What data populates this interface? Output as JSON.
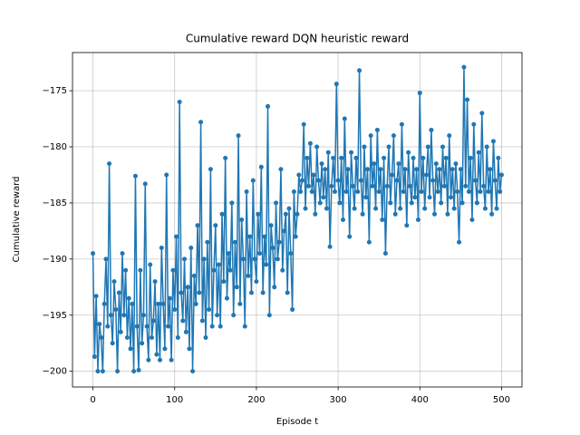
{
  "chart_data": {
    "type": "line",
    "title": "Cumulative reward DQN heuristic reward",
    "xlabel": "Episode t",
    "ylabel": "Cumulative reward",
    "color": "#1f77b4",
    "grid": true,
    "marker": "circle",
    "xlim": [
      -25,
      525
    ],
    "ylim": [
      -201.4,
      -171.6
    ],
    "xticks": [
      0,
      100,
      200,
      300,
      400,
      500
    ],
    "yticks": [
      {
        "value": -200,
        "label": "−200"
      },
      {
        "value": -195,
        "label": "−195"
      },
      {
        "value": -190,
        "label": "−190"
      },
      {
        "value": -185,
        "label": "−185"
      },
      {
        "value": -180,
        "label": "−180"
      },
      {
        "value": -175,
        "label": "−175"
      }
    ],
    "x": [
      0,
      2,
      4,
      6,
      8,
      10,
      12,
      14,
      16,
      18,
      20,
      22,
      24,
      26,
      28,
      30,
      32,
      34,
      36,
      38,
      40,
      42,
      44,
      46,
      48,
      50,
      52,
      54,
      56,
      58,
      60,
      62,
      64,
      66,
      68,
      70,
      72,
      74,
      76,
      78,
      80,
      82,
      84,
      86,
      88,
      90,
      92,
      94,
      96,
      98,
      100,
      102,
      104,
      106,
      108,
      110,
      112,
      114,
      116,
      118,
      120,
      122,
      124,
      126,
      128,
      130,
      132,
      134,
      136,
      138,
      140,
      142,
      144,
      146,
      148,
      150,
      152,
      154,
      156,
      158,
      160,
      162,
      164,
      166,
      168,
      170,
      172,
      174,
      176,
      178,
      180,
      182,
      184,
      186,
      188,
      190,
      192,
      194,
      196,
      198,
      200,
      202,
      204,
      206,
      208,
      210,
      212,
      214,
      216,
      218,
      220,
      222,
      224,
      226,
      228,
      230,
      232,
      234,
      236,
      238,
      240,
      242,
      244,
      246,
      248,
      250,
      252,
      254,
      256,
      258,
      260,
      262,
      264,
      266,
      268,
      270,
      272,
      274,
      276,
      278,
      280,
      282,
      284,
      286,
      288,
      290,
      292,
      294,
      296,
      298,
      300,
      302,
      304,
      306,
      308,
      310,
      312,
      314,
      316,
      318,
      320,
      322,
      324,
      326,
      328,
      330,
      332,
      334,
      336,
      338,
      340,
      342,
      344,
      346,
      348,
      350,
      352,
      354,
      356,
      358,
      360,
      362,
      364,
      366,
      368,
      370,
      372,
      374,
      376,
      378,
      380,
      382,
      384,
      386,
      388,
      390,
      392,
      394,
      396,
      398,
      400,
      402,
      404,
      406,
      408,
      410,
      412,
      414,
      416,
      418,
      420,
      422,
      424,
      426,
      428,
      430,
      432,
      434,
      436,
      438,
      440,
      442,
      444,
      446,
      448,
      450,
      452,
      454,
      456,
      458,
      460,
      462,
      464,
      466,
      468,
      470,
      472,
      474,
      476,
      478,
      480,
      482,
      484,
      486,
      488,
      490,
      492,
      494,
      496,
      498,
      500
    ],
    "values": [
      -189.5,
      -198.7,
      -193.3,
      -200,
      -195.8,
      -197,
      -200,
      -194,
      -190,
      -196,
      -181.5,
      -195,
      -197.5,
      -192,
      -194.5,
      -200,
      -193,
      -196.5,
      -189.5,
      -195,
      -191,
      -197,
      -193.5,
      -198,
      -194,
      -200,
      -182.6,
      -196,
      -199.9,
      -191,
      -197.5,
      -195,
      -183.3,
      -196,
      -199,
      -190.5,
      -197,
      -195.5,
      -192,
      -198.5,
      -194,
      -199,
      -189,
      -194,
      -198,
      -182.5,
      -196,
      -193.5,
      -199,
      -191,
      -194.5,
      -188,
      -197,
      -176,
      -193,
      -195.5,
      -190,
      -196.5,
      -192.5,
      -198,
      -189,
      -200,
      -191.5,
      -194,
      -187,
      -193,
      -177.8,
      -195.5,
      -190,
      -197,
      -188.5,
      -194.5,
      -182,
      -196,
      -191,
      -187,
      -195,
      -190.5,
      -196,
      -186,
      -192,
      -181,
      -193.5,
      -189.5,
      -191,
      -185,
      -195,
      -188.5,
      -192.5,
      -179,
      -194,
      -186.5,
      -190,
      -196,
      -184,
      -191.5,
      -188,
      -193,
      -183,
      -190,
      -192,
      -186,
      -189.5,
      -181.8,
      -193,
      -188,
      -190.5,
      -176.4,
      -195,
      -187,
      -189,
      -192.5,
      -185,
      -190,
      -188.5,
      -182,
      -191,
      -187.5,
      -186,
      -193,
      -185.5,
      -189.5,
      -194.5,
      -184,
      -188,
      -186,
      -182.5,
      -184,
      -183,
      -178,
      -185.5,
      -181,
      -183.5,
      -179.7,
      -184,
      -182.5,
      -186,
      -180,
      -183,
      -185,
      -181.5,
      -184.5,
      -182,
      -185.5,
      -180.5,
      -188.9,
      -183.5,
      -181,
      -184,
      -174.4,
      -183,
      -185,
      -181,
      -186.5,
      -177.5,
      -184,
      -182,
      -188,
      -180.5,
      -183.5,
      -185.5,
      -181,
      -184,
      -173.2,
      -183,
      -186,
      -180,
      -184.5,
      -182,
      -188.5,
      -179,
      -183.5,
      -181.5,
      -185.5,
      -178.5,
      -184,
      -182,
      -186.5,
      -181,
      -189.5,
      -183.5,
      -180,
      -185,
      -182.5,
      -179,
      -186,
      -183,
      -181.5,
      -185.5,
      -178,
      -184,
      -182,
      -187,
      -180.5,
      -183.5,
      -185,
      -181,
      -184.5,
      -182,
      -186.5,
      -175.2,
      -184,
      -181,
      -185.5,
      -182.5,
      -180,
      -184.5,
      -178.5,
      -183,
      -186,
      -181.5,
      -184,
      -182,
      -185,
      -180,
      -183.5,
      -181,
      -186,
      -179,
      -184.5,
      -182,
      -185.5,
      -181.5,
      -184,
      -188.5,
      -182,
      -185,
      -172.9,
      -183.5,
      -175.8,
      -184,
      -181,
      -186.5,
      -178,
      -183,
      -185,
      -180.5,
      -184,
      -177,
      -183.5,
      -185.5,
      -180,
      -184,
      -182,
      -186,
      -179.5,
      -183,
      -185.5,
      -181,
      -184,
      -182.5
    ]
  }
}
